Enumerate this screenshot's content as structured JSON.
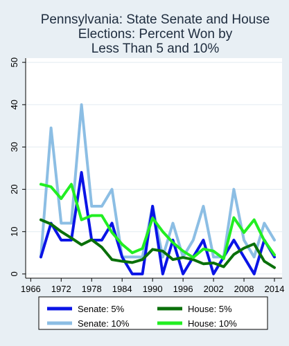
{
  "chart_data": {
    "type": "line",
    "title_lines": [
      "Pennsylvania: State Senate and House",
      "Elections: Percent Won by",
      "Less Than 5 and 10%"
    ],
    "xlabel": "",
    "ylabel": "",
    "x": [
      1968,
      1970,
      1972,
      1974,
      1976,
      1978,
      1980,
      1982,
      1984,
      1986,
      1988,
      1990,
      1992,
      1994,
      1996,
      1998,
      2000,
      2002,
      2004,
      2006,
      2008,
      2010,
      2012,
      2014
    ],
    "xticks": [
      1966,
      1972,
      1978,
      1984,
      1990,
      1996,
      2002,
      2008,
      2014
    ],
    "yticks": [
      0,
      10,
      20,
      30,
      40,
      50
    ],
    "xlim": [
      1965,
      2015.5
    ],
    "ylim": [
      -1,
      51
    ],
    "grid": "horizontal",
    "legend_position": "bottom",
    "series": [
      {
        "name": "Senate: 10%",
        "color": "#8cbee4",
        "width": 4,
        "values": [
          4,
          34.5,
          12,
          12,
          40,
          16,
          16,
          20,
          4,
          4,
          4,
          16,
          4,
          12,
          4,
          8,
          16,
          4,
          4,
          20,
          8,
          4,
          12,
          8
        ]
      },
      {
        "name": "Senate: 5%",
        "color": "#0a14e6",
        "width": 4,
        "values": [
          4,
          12,
          8,
          8,
          24,
          8,
          8,
          12,
          4,
          0,
          0,
          16,
          0,
          8,
          0,
          4,
          8,
          0,
          4,
          8,
          4,
          0,
          8,
          4
        ]
      },
      {
        "name": "House: 5%",
        "color": "#0a700a",
        "width": 4,
        "values": [
          12.8,
          11.8,
          10,
          8.5,
          6.9,
          8.1,
          6.3,
          3.4,
          3,
          2.7,
          3.4,
          5.8,
          5.4,
          3.4,
          3.9,
          3.4,
          2.4,
          2.6,
          1.7,
          4.6,
          6.1,
          7.1,
          3,
          1.5
        ]
      },
      {
        "name": "House: 10%",
        "color": "#22ee22",
        "width": 4,
        "values": [
          21.2,
          20.6,
          17.8,
          21.2,
          12.8,
          13.8,
          13.8,
          9.8,
          7,
          5,
          6,
          13.2,
          10,
          7.4,
          5.4,
          3.9,
          5.9,
          5.4,
          3.6,
          13.3,
          9.8,
          12.8,
          7.9,
          4.5
        ]
      }
    ],
    "legend_items": [
      {
        "name": "Senate: 5%",
        "color": "#0a14e6"
      },
      {
        "name": "House: 5%",
        "color": "#0a700a"
      },
      {
        "name": "Senate: 10%",
        "color": "#8cbee4"
      },
      {
        "name": "House: 10%",
        "color": "#22ee22"
      }
    ],
    "colors": {
      "background": "#e8eff4",
      "plot_background": "#ffffff",
      "grid": "#e2ebf1",
      "axis": "#000000"
    }
  }
}
